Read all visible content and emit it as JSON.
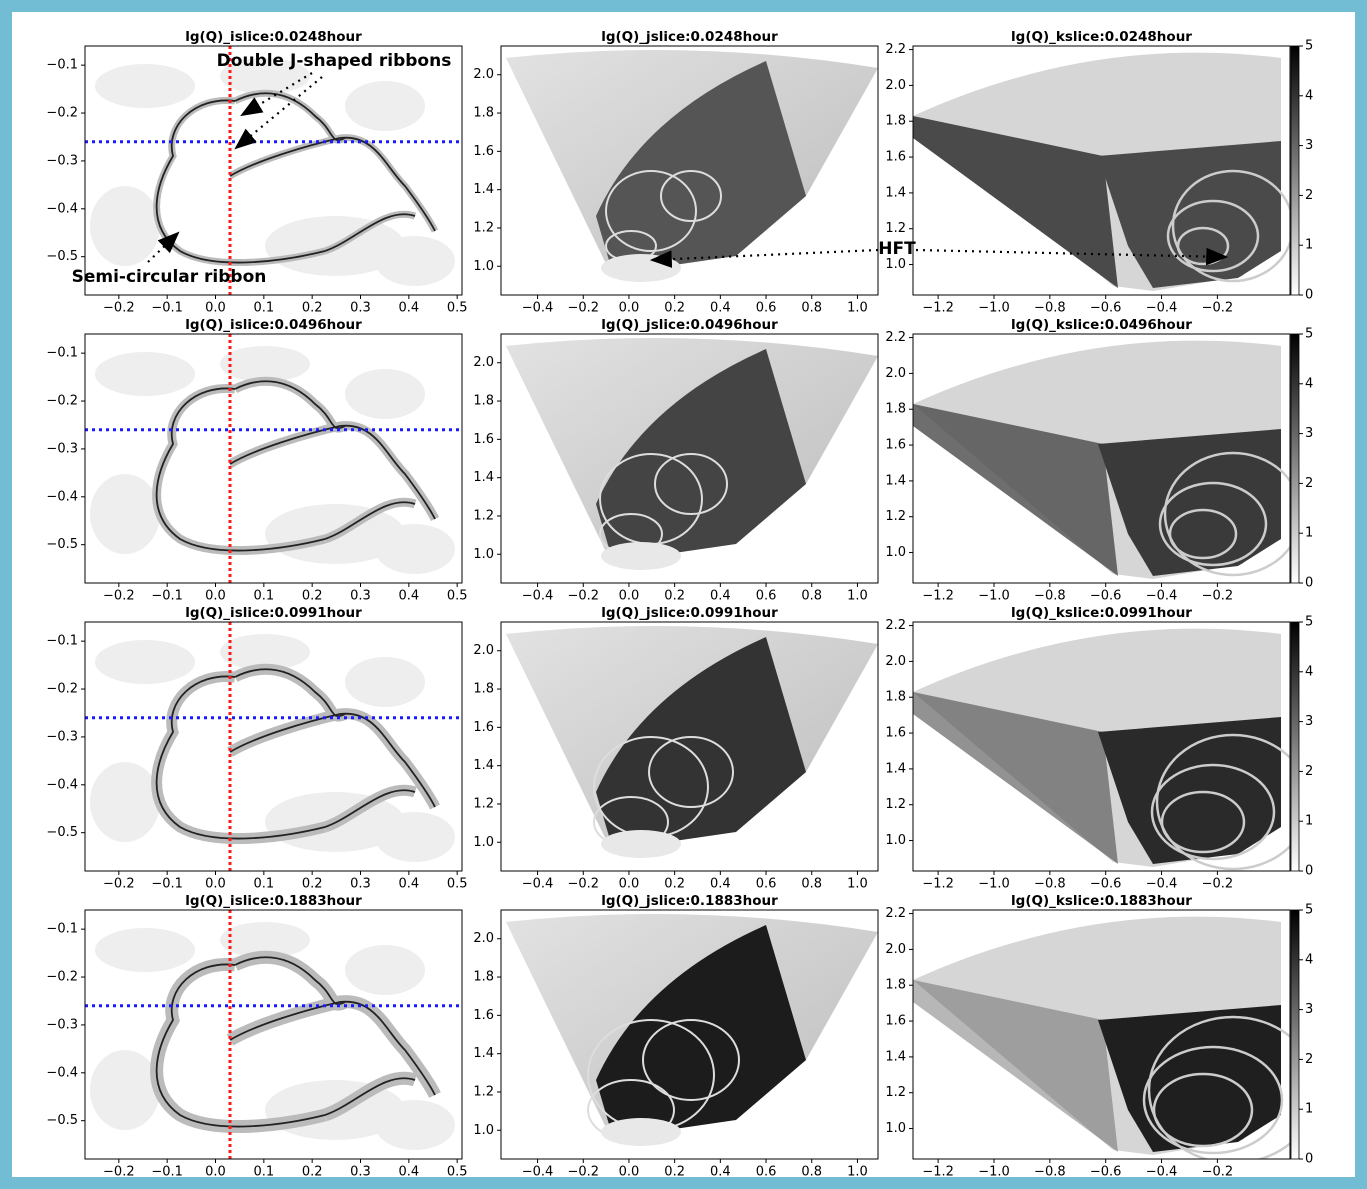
{
  "chart_data": [
    {
      "type": "islice",
      "title": "lg(Q)_islice:0.0248hour",
      "xlim": [
        -0.27,
        0.51
      ],
      "ylim": [
        -0.58,
        -0.06
      ],
      "xticks": [
        {
          "value": -0.2,
          "label": "−0.2"
        },
        {
          "value": -0.1,
          "label": "−0.1"
        },
        {
          "value": 0,
          "label": "0.0"
        },
        0.1,
        0.2,
        0.3,
        0.4,
        0.5
      ],
      "yticks": [
        {
          "value": -0.1,
          "label": "−0.1"
        },
        {
          "value": -0.2,
          "label": "−0.2"
        },
        {
          "value": -0.3,
          "label": "−0.3"
        },
        {
          "value": -0.4,
          "label": "−0.4"
        },
        {
          "value": -0.5,
          "label": "−0.5"
        }
      ],
      "vline": {
        "value": 0.03,
        "color": "#ff1a1a"
      },
      "hline": {
        "value": -0.26,
        "color": "#1a1aff"
      },
      "annotations": [
        "Double J-shaped ribbons",
        "Semi-circular ribbon"
      ]
    },
    {
      "type": "jslice",
      "title": "lg(Q)_jslice:0.0248hour",
      "xlim": [
        -0.56,
        1.09
      ],
      "ylim": [
        0.85,
        2.15
      ],
      "xticks": [
        {
          "value": -0.4,
          "label": "−0.4"
        },
        {
          "value": -0.2,
          "label": "−0.2"
        },
        {
          "value": 0,
          "label": "0.0"
        },
        0.2,
        0.4,
        0.6,
        0.8,
        {
          "value": 1,
          "label": "1.0"
        }
      ],
      "yticks": [
        {
          "value": 1,
          "label": "1.0"
        },
        1.2,
        1.4,
        1.6,
        1.8,
        {
          "value": 2,
          "label": "2.0"
        }
      ]
    },
    {
      "type": "kslice",
      "title": "lg(Q)_kslice:0.0248hour",
      "xlim": [
        -1.29,
        0.06
      ],
      "ylim": [
        0.83,
        2.22
      ],
      "xticks": [
        {
          "value": -1.2,
          "label": "−1.2"
        },
        {
          "value": -1,
          "label": "−1.0"
        },
        {
          "value": -0.8,
          "label": "−0.8"
        },
        {
          "value": -0.6,
          "label": "−0.6"
        },
        {
          "value": -0.4,
          "label": "−0.4"
        },
        {
          "value": -0.2,
          "label": "−0.2"
        }
      ],
      "yticks": [
        {
          "value": 1,
          "label": "1.0"
        },
        1.2,
        1.4,
        1.6,
        1.8,
        {
          "value": 2,
          "label": "2.0"
        },
        2.2
      ],
      "colorbar": {
        "lim": [
          0,
          5
        ],
        "ticks": [
          0,
          1,
          2,
          3,
          4,
          5
        ]
      },
      "annotations": [
        "HFT"
      ]
    },
    {
      "type": "islice",
      "title": "lg(Q)_islice:0.0496hour",
      "xlim": [
        -0.27,
        0.51
      ],
      "ylim": [
        -0.58,
        -0.06
      ],
      "xticks": [
        {
          "value": -0.2,
          "label": "−0.2"
        },
        {
          "value": -0.1,
          "label": "−0.1"
        },
        {
          "value": 0,
          "label": "0.0"
        },
        0.1,
        0.2,
        0.3,
        0.4,
        0.5
      ],
      "yticks": [
        {
          "value": -0.1,
          "label": "−0.1"
        },
        {
          "value": -0.2,
          "label": "−0.2"
        },
        {
          "value": -0.3,
          "label": "−0.3"
        },
        {
          "value": -0.4,
          "label": "−0.4"
        },
        {
          "value": -0.5,
          "label": "−0.5"
        }
      ],
      "vline": {
        "value": 0.03,
        "color": "#ff1a1a"
      },
      "hline": {
        "value": -0.26,
        "color": "#1a1aff"
      }
    },
    {
      "type": "jslice",
      "title": "lg(Q)_jslice:0.0496hour",
      "xlim": [
        -0.56,
        1.09
      ],
      "ylim": [
        0.85,
        2.15
      ],
      "xticks": [
        {
          "value": -0.4,
          "label": "−0.4"
        },
        {
          "value": -0.2,
          "label": "−0.2"
        },
        {
          "value": 0,
          "label": "0.0"
        },
        0.2,
        0.4,
        0.6,
        0.8,
        {
          "value": 1,
          "label": "1.0"
        }
      ],
      "yticks": [
        {
          "value": 1,
          "label": "1.0"
        },
        1.2,
        1.4,
        1.6,
        1.8,
        {
          "value": 2,
          "label": "2.0"
        }
      ]
    },
    {
      "type": "kslice",
      "title": "lg(Q)_kslice:0.0496hour",
      "xlim": [
        -1.29,
        0.06
      ],
      "ylim": [
        0.83,
        2.22
      ],
      "xticks": [
        {
          "value": -1.2,
          "label": "−1.2"
        },
        {
          "value": -1,
          "label": "−1.0"
        },
        {
          "value": -0.8,
          "label": "−0.8"
        },
        {
          "value": -0.6,
          "label": "−0.6"
        },
        {
          "value": -0.4,
          "label": "−0.4"
        },
        {
          "value": -0.2,
          "label": "−0.2"
        }
      ],
      "yticks": [
        {
          "value": 1,
          "label": "1.0"
        },
        1.2,
        1.4,
        1.6,
        1.8,
        {
          "value": 2,
          "label": "2.0"
        },
        2.2
      ],
      "colorbar": {
        "lim": [
          0,
          5
        ],
        "ticks": [
          0,
          1,
          2,
          3,
          4,
          5
        ]
      }
    },
    {
      "type": "islice",
      "title": "lg(Q)_islice:0.0991hour",
      "xlim": [
        -0.27,
        0.51
      ],
      "ylim": [
        -0.58,
        -0.06
      ],
      "xticks": [
        {
          "value": -0.2,
          "label": "−0.2"
        },
        {
          "value": -0.1,
          "label": "−0.1"
        },
        {
          "value": 0,
          "label": "0.0"
        },
        0.1,
        0.2,
        0.3,
        0.4,
        0.5
      ],
      "yticks": [
        {
          "value": -0.1,
          "label": "−0.1"
        },
        {
          "value": -0.2,
          "label": "−0.2"
        },
        {
          "value": -0.3,
          "label": "−0.3"
        },
        {
          "value": -0.4,
          "label": "−0.4"
        },
        {
          "value": -0.5,
          "label": "−0.5"
        }
      ],
      "vline": {
        "value": 0.03,
        "color": "#ff1a1a"
      },
      "hline": {
        "value": -0.26,
        "color": "#1a1aff"
      }
    },
    {
      "type": "jslice",
      "title": "lg(Q)_jslice:0.0991hour",
      "xlim": [
        -0.56,
        1.09
      ],
      "ylim": [
        0.85,
        2.15
      ],
      "xticks": [
        {
          "value": -0.4,
          "label": "−0.4"
        },
        {
          "value": -0.2,
          "label": "−0.2"
        },
        {
          "value": 0,
          "label": "0.0"
        },
        0.2,
        0.4,
        0.6,
        0.8,
        {
          "value": 1,
          "label": "1.0"
        }
      ],
      "yticks": [
        {
          "value": 1,
          "label": "1.0"
        },
        1.2,
        1.4,
        1.6,
        1.8,
        {
          "value": 2,
          "label": "2.0"
        }
      ]
    },
    {
      "type": "kslice",
      "title": "lg(Q)_kslice:0.0991hour",
      "xlim": [
        -1.29,
        0.06
      ],
      "ylim": [
        0.83,
        2.22
      ],
      "xticks": [
        {
          "value": -1.2,
          "label": "−1.2"
        },
        {
          "value": -1,
          "label": "−1.0"
        },
        {
          "value": -0.8,
          "label": "−0.8"
        },
        {
          "value": -0.6,
          "label": "−0.6"
        },
        {
          "value": -0.4,
          "label": "−0.4"
        },
        {
          "value": -0.2,
          "label": "−0.2"
        }
      ],
      "yticks": [
        {
          "value": 1,
          "label": "1.0"
        },
        1.2,
        1.4,
        1.6,
        1.8,
        {
          "value": 2,
          "label": "2.0"
        },
        2.2
      ],
      "colorbar": {
        "lim": [
          0,
          5
        ],
        "ticks": [
          0,
          1,
          2,
          3,
          4,
          5
        ]
      }
    },
    {
      "type": "islice",
      "title": "lg(Q)_islice:0.1883hour",
      "xlim": [
        -0.27,
        0.51
      ],
      "ylim": [
        -0.58,
        -0.06
      ],
      "xticks": [
        {
          "value": -0.2,
          "label": "−0.2"
        },
        {
          "value": -0.1,
          "label": "−0.1"
        },
        {
          "value": 0,
          "label": "0.0"
        },
        0.1,
        0.2,
        0.3,
        0.4,
        0.5
      ],
      "yticks": [
        {
          "value": -0.1,
          "label": "−0.1"
        },
        {
          "value": -0.2,
          "label": "−0.2"
        },
        {
          "value": -0.3,
          "label": "−0.3"
        },
        {
          "value": -0.4,
          "label": "−0.4"
        },
        {
          "value": -0.5,
          "label": "−0.5"
        }
      ],
      "vline": {
        "value": 0.03,
        "color": "#ff1a1a"
      },
      "hline": {
        "value": -0.26,
        "color": "#1a1aff"
      }
    },
    {
      "type": "jslice",
      "title": "lg(Q)_jslice:0.1883hour",
      "xlim": [
        -0.56,
        1.09
      ],
      "ylim": [
        0.85,
        2.15
      ],
      "xticks": [
        {
          "value": -0.4,
          "label": "−0.4"
        },
        {
          "value": -0.2,
          "label": "−0.2"
        },
        {
          "value": 0,
          "label": "0.0"
        },
        0.2,
        0.4,
        0.6,
        0.8,
        {
          "value": 1,
          "label": "1.0"
        }
      ],
      "yticks": [
        {
          "value": 1,
          "label": "1.0"
        },
        1.2,
        1.4,
        1.6,
        1.8,
        {
          "value": 2,
          "label": "2.0"
        }
      ]
    },
    {
      "type": "kslice",
      "title": "lg(Q)_kslice:0.1883hour",
      "xlim": [
        -1.29,
        0.06
      ],
      "ylim": [
        0.83,
        2.22
      ],
      "xticks": [
        {
          "value": -1.2,
          "label": "−1.2"
        },
        {
          "value": -1,
          "label": "−1.0"
        },
        {
          "value": -0.8,
          "label": "−0.8"
        },
        {
          "value": -0.6,
          "label": "−0.6"
        },
        {
          "value": -0.4,
          "label": "−0.4"
        },
        {
          "value": -0.2,
          "label": "−0.2"
        }
      ],
      "yticks": [
        {
          "value": 1,
          "label": "1.0"
        },
        1.2,
        1.4,
        1.6,
        1.8,
        {
          "value": 2,
          "label": "2.0"
        },
        2.2
      ],
      "colorbar": {
        "lim": [
          0,
          5
        ],
        "ticks": [
          0,
          1,
          2,
          3,
          4,
          5
        ]
      }
    }
  ]
}
